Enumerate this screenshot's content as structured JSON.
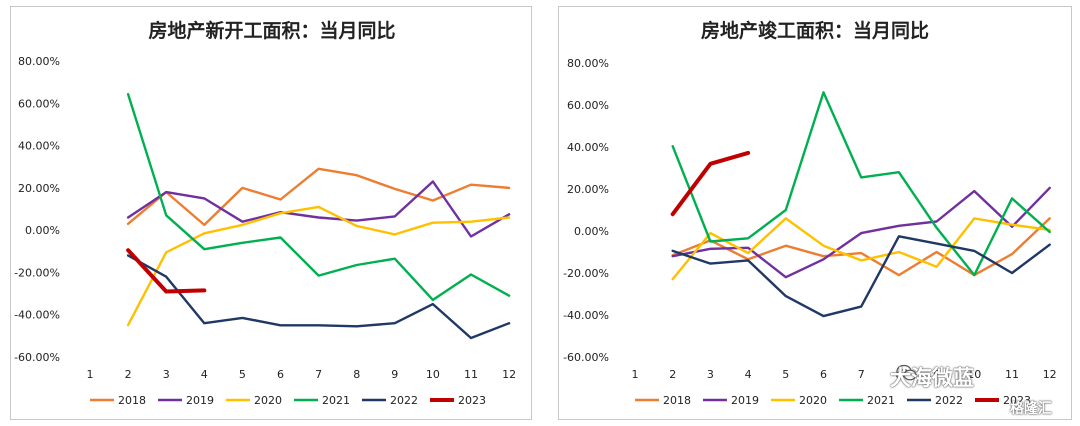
{
  "colors": {
    "2018": "#ed7d31",
    "2019": "#7030a0",
    "2020": "#ffc000",
    "2021": "#00b050",
    "2022": "#1f3864",
    "2023": "#c00000"
  },
  "watermark": {
    "main": "大海微蓝",
    "sub": "格隆汇",
    "icon": "wechat-icon"
  },
  "chart_data": [
    {
      "type": "line",
      "title": "房地产新开工面积：当月同比",
      "x": [
        1,
        2,
        3,
        4,
        5,
        6,
        7,
        8,
        9,
        10,
        11,
        12
      ],
      "x_tick_labels": [
        "1",
        "2",
        "3",
        "4",
        "5",
        "6",
        "7",
        "8",
        "9",
        "10",
        "11",
        "12"
      ],
      "y_tick_labels": [
        "80.00%",
        "60.00%",
        "40.00%",
        "20.00%",
        "0.00%",
        "-20.00%",
        "-40.00%",
        "-60.00%"
      ],
      "ylim": [
        -60,
        80
      ],
      "yticks": [
        80,
        60,
        40,
        20,
        0,
        -20,
        -40,
        -60
      ],
      "legend_position": "bottom",
      "grid": false,
      "series": [
        {
          "name": "2018",
          "x": [
            2,
            3,
            4,
            5,
            6,
            7,
            8,
            9,
            10,
            11,
            12
          ],
          "values": [
            3.0,
            18.0,
            2.5,
            20.0,
            14.5,
            29.0,
            26.0,
            19.5,
            14.0,
            21.5,
            20.0
          ]
        },
        {
          "name": "2019",
          "x": [
            2,
            3,
            4,
            5,
            6,
            7,
            8,
            9,
            10,
            11,
            12
          ],
          "values": [
            6.0,
            18.0,
            15.0,
            4.0,
            8.5,
            6.0,
            4.5,
            6.5,
            23.0,
            -3.0,
            7.5
          ]
        },
        {
          "name": "2020",
          "x": [
            2,
            3,
            4,
            5,
            6,
            7,
            8,
            9,
            10,
            11,
            12
          ],
          "values": [
            -44.9,
            -10.5,
            -1.5,
            2.5,
            8.0,
            11.0,
            2.0,
            -2.0,
            3.5,
            4.0,
            6.0
          ]
        },
        {
          "name": "2021",
          "x": [
            2,
            3,
            4,
            5,
            6,
            7,
            8,
            9,
            10,
            11,
            12
          ],
          "values": [
            64.3,
            7.0,
            -9.0,
            -6.0,
            -3.5,
            -21.5,
            -16.5,
            -13.5,
            -33.0,
            -21.0,
            -31.0
          ]
        },
        {
          "name": "2022",
          "x": [
            2,
            3,
            4,
            5,
            6,
            7,
            8,
            9,
            10,
            11,
            12
          ],
          "values": [
            -12.0,
            -22.0,
            -44.0,
            -41.5,
            -45.0,
            -45.0,
            -45.5,
            -44.0,
            -35.0,
            -51.0,
            -44.0
          ]
        },
        {
          "name": "2023",
          "x": [
            2,
            3,
            4
          ],
          "values": [
            -9.5,
            -29.0,
            -28.5
          ]
        }
      ]
    },
    {
      "type": "line",
      "title": "房地产竣工面积：当月同比",
      "x": [
        1,
        2,
        3,
        4,
        5,
        6,
        7,
        8,
        9,
        10,
        11,
        12
      ],
      "x_tick_labels": [
        "1",
        "2",
        "3",
        "4",
        "5",
        "6",
        "7",
        "8",
        "9",
        "10",
        "11",
        "12"
      ],
      "y_tick_labels": [
        "80.00%",
        "60.00%",
        "40.00%",
        "20.00%",
        "0.00%",
        "-20.00%",
        "-40.00%",
        "-60.00%"
      ],
      "ylim": [
        -60,
        80
      ],
      "yticks": [
        80,
        60,
        40,
        20,
        0,
        -20,
        -40,
        -60
      ],
      "legend_position": "bottom",
      "grid": false,
      "series": [
        {
          "name": "2018",
          "x": [
            2,
            3,
            4,
            5,
            6,
            7,
            8,
            9,
            10,
            11,
            12
          ],
          "values": [
            -11.5,
            -4.5,
            -13.5,
            -7.0,
            -12.0,
            -10.5,
            -21.0,
            -10.0,
            -21.0,
            -11.0,
            6.0
          ]
        },
        {
          "name": "2019",
          "x": [
            2,
            3,
            4,
            5,
            6,
            7,
            8,
            9,
            10,
            11,
            12
          ],
          "values": [
            -12.0,
            -8.5,
            -8.0,
            -22.0,
            -13.5,
            -1.0,
            2.5,
            4.5,
            19.0,
            2.0,
            20.5
          ]
        },
        {
          "name": "2020",
          "x": [
            2,
            3,
            4,
            5,
            6,
            7,
            8,
            9,
            10,
            11,
            12
          ],
          "values": [
            -22.9,
            -1.0,
            -10.5,
            6.0,
            -7.0,
            -14.0,
            -10.0,
            -17.0,
            6.0,
            3.0,
            0.5
          ]
        },
        {
          "name": "2021",
          "x": [
            2,
            3,
            4,
            5,
            6,
            7,
            8,
            9,
            10,
            11,
            12
          ],
          "values": [
            40.4,
            -5.0,
            -3.5,
            10.0,
            66.0,
            25.5,
            28.0,
            1.5,
            -21.0,
            15.5,
            -0.5
          ]
        },
        {
          "name": "2022",
          "x": [
            2,
            3,
            4,
            5,
            6,
            7,
            8,
            9,
            10,
            11,
            12
          ],
          "values": [
            -9.5,
            -15.5,
            -14.0,
            -31.0,
            -40.5,
            -36.0,
            -2.5,
            -6.0,
            -9.5,
            -20.0,
            -6.5
          ]
        },
        {
          "name": "2023",
          "x": [
            2,
            3,
            4
          ],
          "values": [
            8.0,
            32.0,
            37.2
          ]
        }
      ]
    }
  ]
}
